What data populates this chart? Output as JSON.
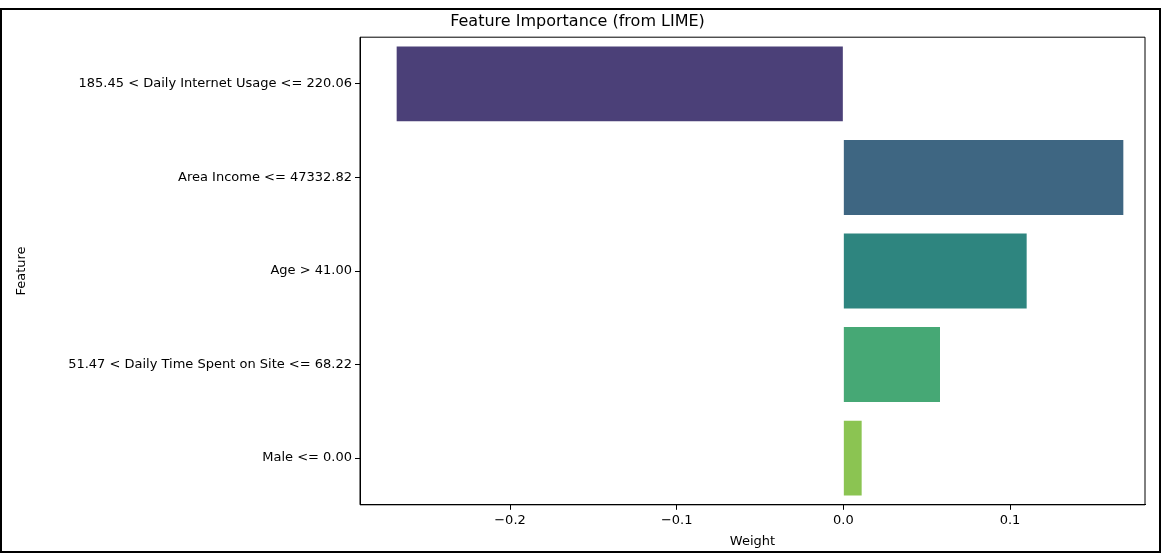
{
  "chart_data": {
    "type": "bar",
    "orientation": "horizontal",
    "title": "Feature Importance (from LIME)",
    "xlabel": "Weight",
    "ylabel": "Feature",
    "categories": [
      "185.45 < Daily Internet Usage <= 220.06",
      "Area Income <= 47332.82",
      "Age > 41.00",
      "51.47 < Daily Time Spent on Site <= 68.22",
      "Male <= 0.00"
    ],
    "values": [
      -0.268,
      0.168,
      0.11,
      0.058,
      0.011
    ],
    "colors": [
      "#4b4078",
      "#3e6682",
      "#2e857f",
      "#46a875",
      "#8bc452"
    ],
    "xlim": [
      -0.29,
      0.181
    ],
    "xticks": [
      {
        "value": -0.2,
        "label": "−0.2"
      },
      {
        "value": -0.1,
        "label": "−0.1"
      },
      {
        "value": 0,
        "label": "0.0"
      },
      {
        "value": 0.1,
        "label": "0.1"
      }
    ],
    "grid": false,
    "legend": false
  }
}
